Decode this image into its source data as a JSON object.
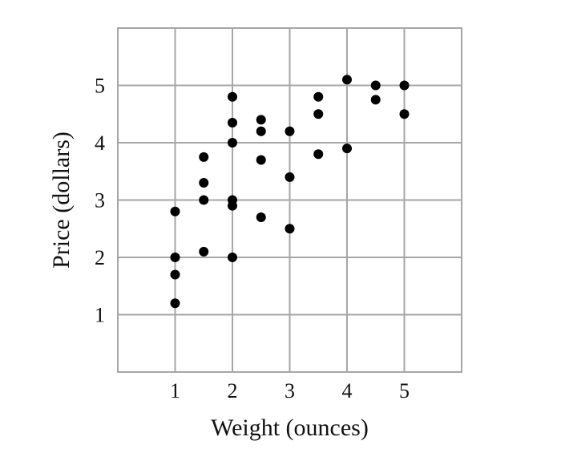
{
  "chart_data": {
    "type": "scatter",
    "xlabel": "Weight (ounces)",
    "ylabel": "Price (dollars)",
    "xlim": [
      0,
      6
    ],
    "ylim": [
      0,
      6
    ],
    "x_ticks": [
      1,
      2,
      3,
      4,
      5
    ],
    "y_ticks": [
      1,
      2,
      3,
      4,
      5
    ],
    "grid": true,
    "point_color": "#000000",
    "grid_color": "#a6a6a6",
    "points": [
      {
        "x": 1,
        "y": 1.2
      },
      {
        "x": 1,
        "y": 1.7
      },
      {
        "x": 1,
        "y": 2.0
      },
      {
        "x": 1,
        "y": 2.8
      },
      {
        "x": 1.5,
        "y": 2.1
      },
      {
        "x": 1.5,
        "y": 3.0
      },
      {
        "x": 1.5,
        "y": 3.3
      },
      {
        "x": 1.5,
        "y": 3.75
      },
      {
        "x": 2,
        "y": 2.0
      },
      {
        "x": 2,
        "y": 2.9
      },
      {
        "x": 2,
        "y": 3.0
      },
      {
        "x": 2,
        "y": 4.0
      },
      {
        "x": 2,
        "y": 4.35
      },
      {
        "x": 2,
        "y": 4.8
      },
      {
        "x": 2.5,
        "y": 2.7
      },
      {
        "x": 2.5,
        "y": 3.7
      },
      {
        "x": 2.5,
        "y": 4.2
      },
      {
        "x": 2.5,
        "y": 4.4
      },
      {
        "x": 3,
        "y": 2.5
      },
      {
        "x": 3,
        "y": 3.4
      },
      {
        "x": 3,
        "y": 4.2
      },
      {
        "x": 3.5,
        "y": 3.8
      },
      {
        "x": 3.5,
        "y": 4.5
      },
      {
        "x": 3.5,
        "y": 4.8
      },
      {
        "x": 4,
        "y": 3.9
      },
      {
        "x": 4,
        "y": 5.1
      },
      {
        "x": 4.5,
        "y": 4.75
      },
      {
        "x": 4.5,
        "y": 5.0
      },
      {
        "x": 5,
        "y": 4.5
      },
      {
        "x": 5,
        "y": 5.0
      }
    ]
  }
}
